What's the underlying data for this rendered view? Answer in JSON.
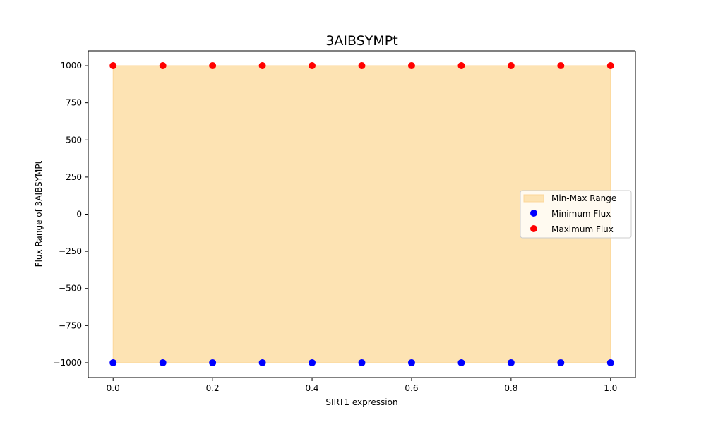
{
  "chart_data": {
    "type": "scatter",
    "title": "3AIBSYMPt",
    "xlabel": "SIRT1 expression",
    "ylabel": "Flux Range of 3AIBSYMPt",
    "xlim": [
      -0.05,
      1.05
    ],
    "ylim": [
      -1100,
      1100
    ],
    "xticks": [
      0.0,
      0.2,
      0.4,
      0.6,
      0.8,
      1.0
    ],
    "xtick_labels": [
      "0.0",
      "0.2",
      "0.4",
      "0.6",
      "0.8",
      "1.0"
    ],
    "yticks": [
      -1000,
      -750,
      -500,
      -250,
      0,
      250,
      500,
      750,
      1000
    ],
    "ytick_labels": [
      "−1000",
      "−750",
      "−500",
      "−250",
      "0",
      "250",
      "500",
      "750",
      "1000"
    ],
    "x": [
      0.0,
      0.1,
      0.2,
      0.3,
      0.4,
      0.5,
      0.6,
      0.7,
      0.8,
      0.9,
      1.0
    ],
    "series": [
      {
        "name": "Min-Max Range",
        "kind": "area",
        "color": "#fde3b3",
        "lower": [
          -1000,
          -1000,
          -1000,
          -1000,
          -1000,
          -1000,
          -1000,
          -1000,
          -1000,
          -1000,
          -1000
        ],
        "upper": [
          1000,
          1000,
          1000,
          1000,
          1000,
          1000,
          1000,
          1000,
          1000,
          1000,
          1000
        ]
      },
      {
        "name": "Minimum Flux",
        "kind": "scatter",
        "color": "#0000ff",
        "values": [
          -1000,
          -1000,
          -1000,
          -1000,
          -1000,
          -1000,
          -1000,
          -1000,
          -1000,
          -1000,
          -1000
        ]
      },
      {
        "name": "Maximum Flux",
        "kind": "scatter",
        "color": "#ff0000",
        "values": [
          1000,
          1000,
          1000,
          1000,
          1000,
          1000,
          1000,
          1000,
          1000,
          1000,
          1000
        ]
      }
    ],
    "legend": {
      "placement": "center-right",
      "entries": [
        "Min-Max Range",
        "Minimum Flux",
        "Maximum Flux"
      ]
    },
    "grid": false
  }
}
